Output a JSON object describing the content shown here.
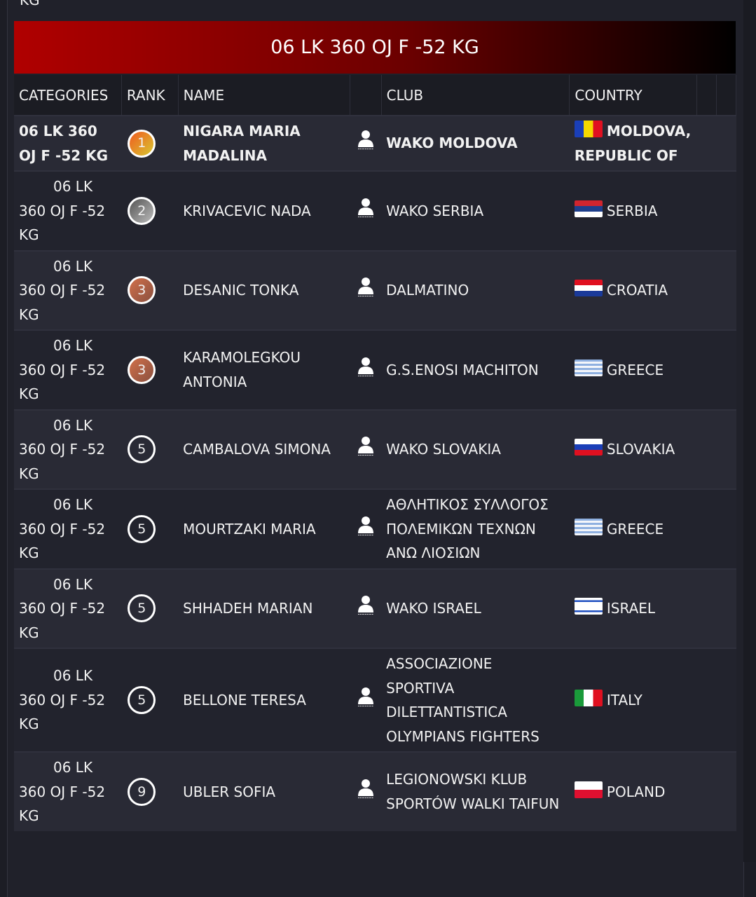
{
  "prev_category_tail": "KG",
  "category_title": "06 LK 360 OJ F -52 KG",
  "columns": [
    "CATEGORIES",
    "RANK",
    "NAME",
    "",
    "CLUB",
    "COUNTRY",
    "",
    ""
  ],
  "rank_colors": {
    "1": "#f0a020",
    "2": "#8a8a8a",
    "3": "#b96a4a",
    "other": "transparent"
  },
  "rows": [
    {
      "category": "06 LK 360 OJ F -52 KG",
      "rank": "1",
      "name": "NIGARA MARIA MADALINA",
      "icon": "person-icon",
      "club": "WAKO MOLDOVA",
      "country": "MOLDOVA, REPUBLIC OF",
      "flag": "moldova"
    },
    {
      "category": "06 LK 360 OJ F -52 KG",
      "rank": "2",
      "name": "KRIVACEVIC NADA",
      "icon": "person-icon",
      "club": "WAKO SERBIA",
      "country": "SERBIA",
      "flag": "serbia"
    },
    {
      "category": "06 LK 360 OJ F -52 KG",
      "rank": "3",
      "name": "DESANIC TONKA",
      "icon": "person-icon",
      "club": "DALMATINO",
      "country": "CROATIA",
      "flag": "croatia"
    },
    {
      "category": "06 LK 360 OJ F -52 KG",
      "rank": "3",
      "name": "KARAMOLEGKOU ANTONIA",
      "icon": "person-icon",
      "club": "G.S.ENOSI MACHITON",
      "country": "GREECE",
      "flag": "greece"
    },
    {
      "category": "06 LK 360 OJ F -52 KG",
      "rank": "5",
      "name": "CAMBALOVA SIMONA",
      "icon": "person-icon",
      "club": "WAKO SLOVAKIA",
      "country": "SLOVAKIA",
      "flag": "slovakia"
    },
    {
      "category": "06 LK 360 OJ F -52 KG",
      "rank": "5",
      "name": "MOURTZAKI MARIA",
      "icon": "person-icon",
      "club": "ΑΘΛΗΤΙΚΟΣ ΣΥΛΛΟΓΟΣ ΠΟΛΕΜΙΚΩΝ ΤΕΧΝΩΝ ΑΝΩ ΛΙΟΣΙΩΝ",
      "country": "GREECE",
      "flag": "greece"
    },
    {
      "category": "06 LK 360 OJ F -52 KG",
      "rank": "5",
      "name": "SHHADEH MARIAN",
      "icon": "person-icon",
      "club": "WAKO ISRAEL",
      "country": "ISRAEL",
      "flag": "israel"
    },
    {
      "category": "06 LK 360 OJ F -52 KG",
      "rank": "5",
      "name": "BELLONE TERESA",
      "icon": "person-icon",
      "club": "ASSOCIAZIONE SPORTIVA DILETTANTISTICA OLYMPIANS FIGHTERS",
      "country": "ITALY",
      "flag": "italy"
    },
    {
      "category": "06 LK 360 OJ F -52 KG",
      "rank": "9",
      "name": "UBLER SOFIA",
      "icon": "person-icon",
      "club": "LEGIONOWSKI KLUB SPORTÓW WALKI TAIFUN",
      "country": "POLAND",
      "flag": "poland"
    }
  ]
}
